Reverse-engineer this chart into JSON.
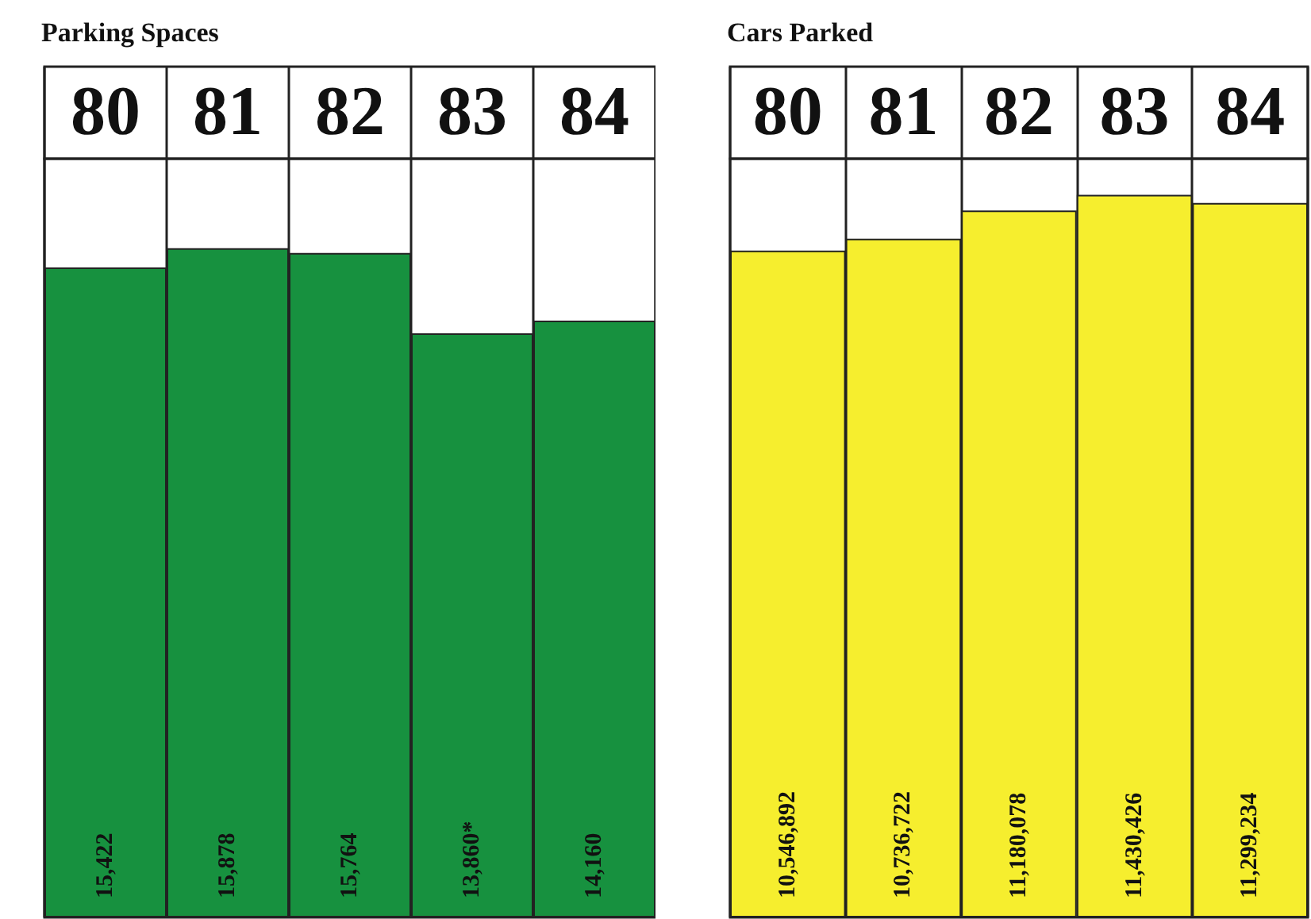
{
  "chart_data": [
    {
      "type": "bar",
      "title": "Parking Spaces",
      "categories": [
        "80",
        "81",
        "82",
        "83",
        "84"
      ],
      "values": [
        15422,
        15878,
        15764,
        13860,
        14160
      ],
      "value_labels": [
        "15,422",
        "15,878",
        "15,764",
        "13,860*",
        "14,160"
      ],
      "color": "#17913f"
    },
    {
      "type": "bar",
      "title": "Cars Parked",
      "categories": [
        "80",
        "81",
        "82",
        "83",
        "84"
      ],
      "values": [
        10546892,
        10736722,
        11180078,
        11430426,
        11299234
      ],
      "value_labels": [
        "10,546,892",
        "10,736,722",
        "11,180,078",
        "11,430,426",
        "11,299,234"
      ],
      "color": "#f6ee2e"
    }
  ]
}
